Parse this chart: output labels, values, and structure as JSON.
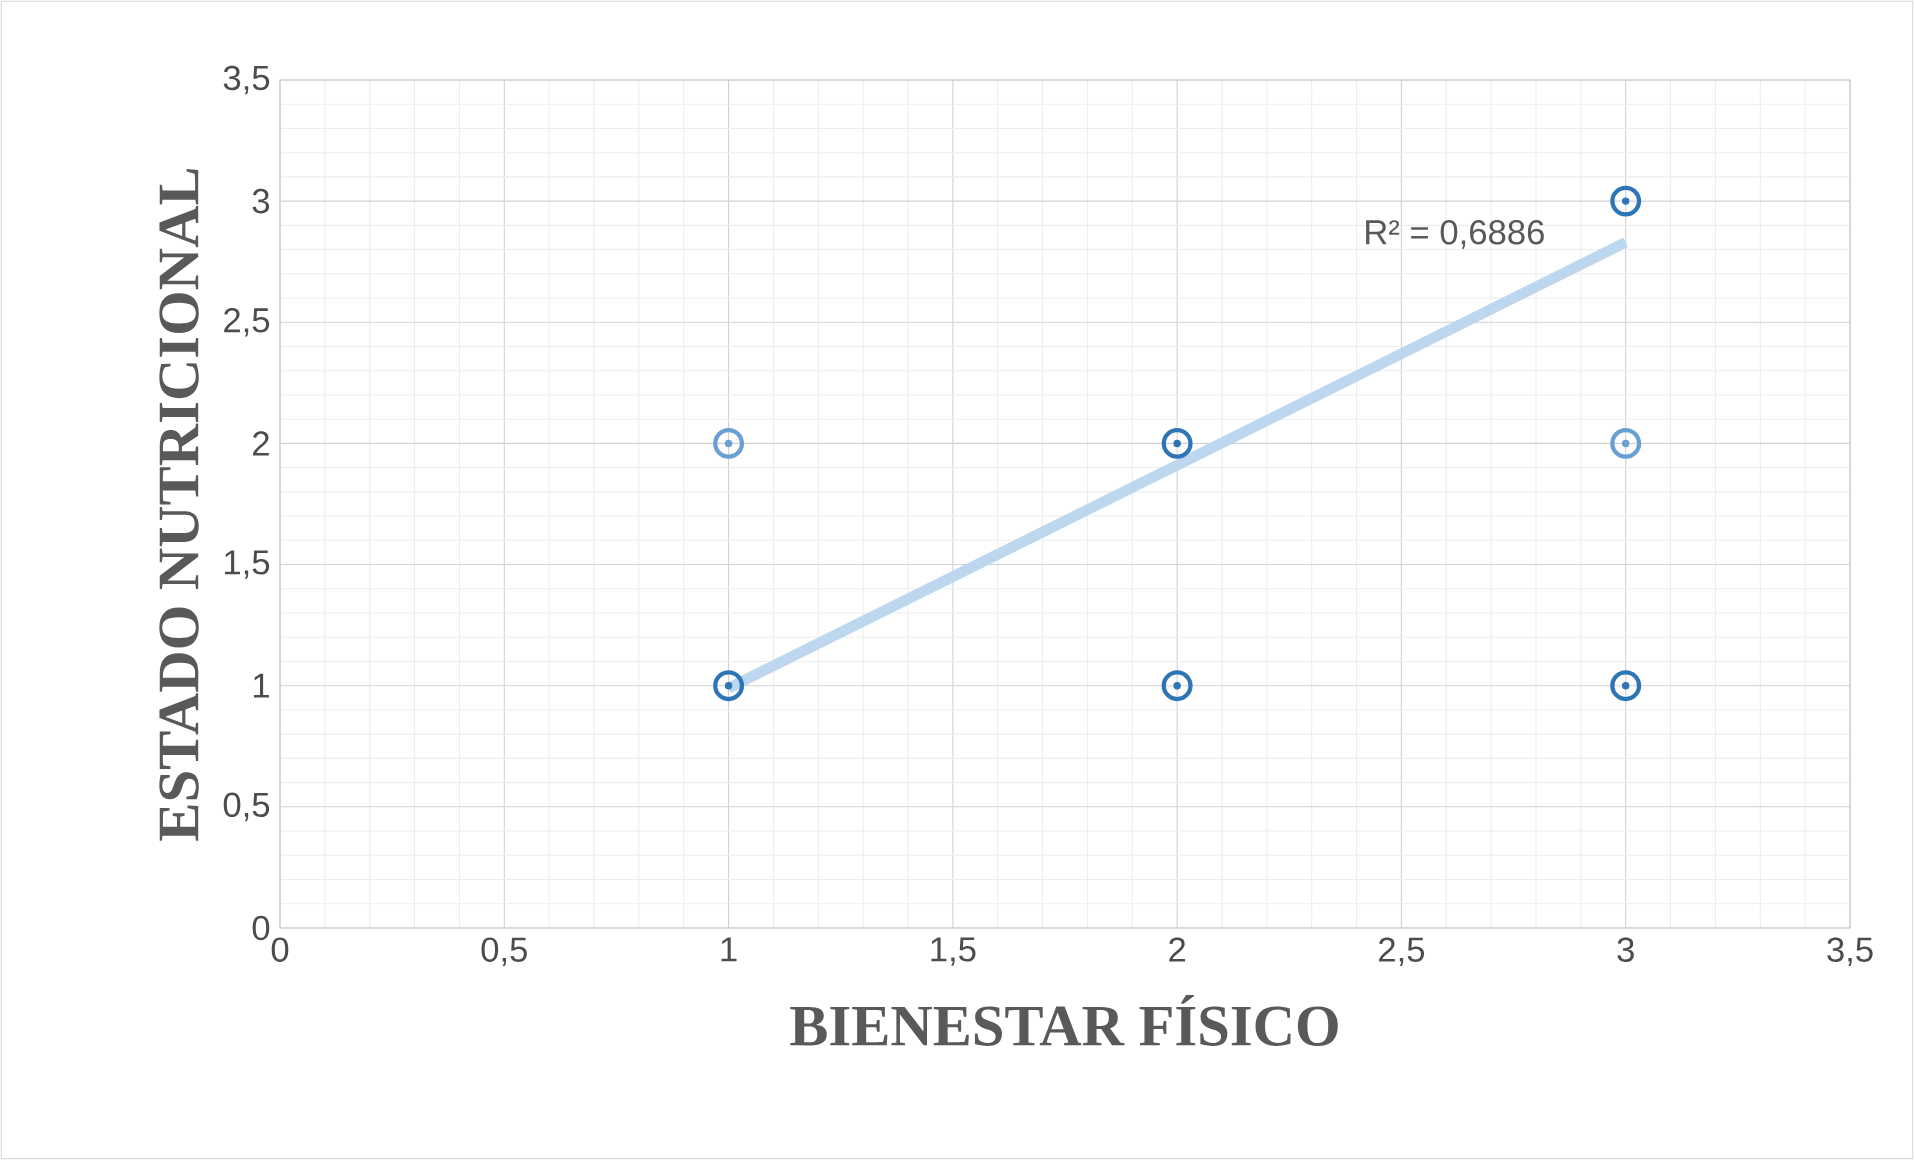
{
  "chart_data": {
    "type": "scatter",
    "xlabel": "BIENESTAR FÍSICO",
    "ylabel": "ESTADO NUTRICIONAL",
    "xlim": [
      0,
      3.5
    ],
    "ylim": [
      0,
      3.5
    ],
    "xticks": [
      0,
      {
        "value": 0.5,
        "label": "0,5"
      },
      1,
      {
        "value": 1.5,
        "label": "1,5"
      },
      2,
      {
        "value": 2.5,
        "label": "2,5"
      },
      3,
      {
        "value": 3.5,
        "label": "3,5"
      }
    ],
    "yticks": [
      0,
      {
        "value": 0.5,
        "label": "0,5"
      },
      1,
      {
        "value": 1.5,
        "label": "1,5"
      },
      2,
      {
        "value": 2.5,
        "label": "2,5"
      },
      3,
      {
        "value": 3.5,
        "label": "3,5"
      }
    ],
    "grid": true,
    "series": [
      {
        "marker": "circle",
        "x": [
          1,
          1,
          2,
          2,
          3,
          3,
          3
        ],
        "values": [
          1,
          2,
          1,
          2,
          1,
          2,
          3
        ],
        "colors": [
          "#2e75b6",
          "#6a9fd4",
          "#2e75b6",
          "#2e75b6",
          "#2e75b6",
          "#6a9fd4",
          "#2e75b6"
        ]
      },
      {
        "type": "line",
        "x": [
          1,
          3
        ],
        "values": [
          0.99,
          2.83
        ],
        "color": "#bdd7ee"
      }
    ],
    "annotations": [
      "R² = 0,6886"
    ]
  }
}
